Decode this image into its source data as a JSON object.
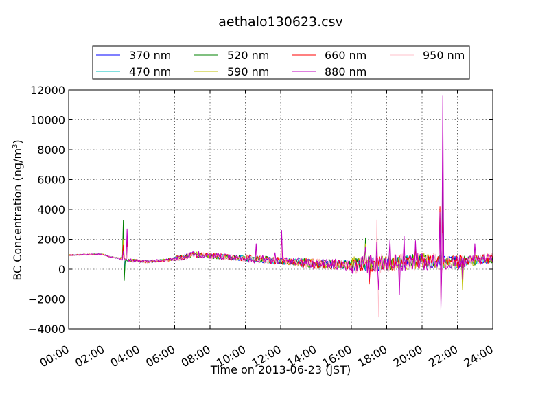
{
  "chart_data": {
    "type": "line",
    "title": "aethalo130623.csv",
    "xlabel": "Time on 2013-06-23 (JST)",
    "ylabel": "BC Concentration (ng/m",
    "ylabel_sup": "3",
    "ylabel_end": ")",
    "xlim": [
      0,
      24
    ],
    "ylim": [
      -4000,
      12000
    ],
    "x_ticks": [
      0,
      2,
      4,
      6,
      8,
      10,
      12,
      14,
      16,
      18,
      20,
      22,
      24
    ],
    "x_tick_labels": [
      "00:00",
      "02:00",
      "04:00",
      "06:00",
      "08:00",
      "10:00",
      "12:00",
      "14:00",
      "16:00",
      "18:00",
      "20:00",
      "22:00",
      "24:00"
    ],
    "y_ticks": [
      -4000,
      -2000,
      0,
      2000,
      4000,
      6000,
      8000,
      10000,
      12000
    ],
    "y_tick_labels": [
      "−4000",
      "−2000",
      "0",
      "2000",
      "4000",
      "6000",
      "8000",
      "10000",
      "12000"
    ],
    "grid": true,
    "legend_position": "top-center",
    "series": [
      {
        "name": "370 nm",
        "color": "#0000ff",
        "seed": 11,
        "noise": 1.0
      },
      {
        "name": "470 nm",
        "color": "#00bfbf",
        "seed": 23,
        "noise": 1.0
      },
      {
        "name": "520 nm",
        "color": "#008000",
        "seed": 37,
        "noise": 1.05
      },
      {
        "name": "590 nm",
        "color": "#bfbf00",
        "seed": 41,
        "noise": 1.1
      },
      {
        "name": "660 nm",
        "color": "#ff0000",
        "seed": 53,
        "noise": 1.1
      },
      {
        "name": "880 nm",
        "color": "#bf00bf",
        "seed": 67,
        "noise": 1.25
      },
      {
        "name": "950 nm",
        "color": "#ffc0cb",
        "seed": 79,
        "noise": 1.3
      }
    ],
    "features": [
      {
        "x": 0.0,
        "y": 950
      },
      {
        "x": 1.9,
        "y": 1000
      },
      {
        "x": 2.3,
        "y": 850
      },
      {
        "x": 3.0,
        "y": 700
      },
      {
        "x": 3.4,
        "y": 600
      },
      {
        "x": 4.5,
        "y": 500
      },
      {
        "x": 5.5,
        "y": 600
      },
      {
        "x": 6.5,
        "y": 800
      },
      {
        "x": 7.0,
        "y": 1000
      },
      {
        "x": 8.0,
        "y": 900
      },
      {
        "x": 9.0,
        "y": 800
      },
      {
        "x": 11.0,
        "y": 650
      },
      {
        "x": 12.5,
        "y": 500
      },
      {
        "x": 14.0,
        "y": 350
      },
      {
        "x": 16.0,
        "y": 300
      },
      {
        "x": 18.0,
        "y": 400
      },
      {
        "x": 20.0,
        "y": 550
      },
      {
        "x": 22.0,
        "y": 450
      },
      {
        "x": 24.0,
        "y": 750
      }
    ],
    "spikes": [
      {
        "x": 3.1,
        "values": {
          "520 nm": 3250,
          "370 nm": 2200,
          "470 nm": 2400,
          "590 nm": 2000,
          "660 nm": 1600,
          "880 nm": 1200,
          "950 nm": 900
        }
      },
      {
        "x": 3.15,
        "values": {
          "520 nm": -750,
          "470 nm": -300,
          "370 nm": -200
        }
      },
      {
        "x": 3.3,
        "values": {
          "880 nm": 2700,
          "660 nm": 2100,
          "590 nm": 1800,
          "950 nm": 1500
        }
      },
      {
        "x": 12.05,
        "values": {
          "880 nm": 2600,
          "660 nm": 1800,
          "950 nm": 1600
        }
      },
      {
        "x": 11.7,
        "values": {
          "880 nm": 1100,
          "950 nm": 800
        }
      },
      {
        "x": 10.6,
        "values": {
          "880 nm": 1700,
          "950 nm": 1200
        }
      },
      {
        "x": 16.8,
        "values": {
          "520 nm": 2100,
          "590 nm": 1700,
          "880 nm": 1500
        }
      },
      {
        "x": 17.0,
        "values": {
          "660 nm": -1000,
          "880 nm": -700
        }
      },
      {
        "x": 17.45,
        "values": {
          "950 nm": 3300,
          "880 nm": 1800
        }
      },
      {
        "x": 17.55,
        "values": {
          "950 nm": -3200,
          "880 nm": -1400
        }
      },
      {
        "x": 18.2,
        "values": {
          "880 nm": 2000,
          "950 nm": 1400
        }
      },
      {
        "x": 18.7,
        "values": {
          "880 nm": -1700,
          "950 nm": -900
        }
      },
      {
        "x": 19.0,
        "values": {
          "880 nm": 2200,
          "950 nm": 1500
        }
      },
      {
        "x": 19.6,
        "values": {
          "880 nm": 1900,
          "660 nm": 1400
        }
      },
      {
        "x": 21.0,
        "values": {
          "660 nm": 4200,
          "880 nm": 3800,
          "590 nm": 3400,
          "950 nm": 2800
        }
      },
      {
        "x": 21.2,
        "values": {
          "880 nm": 11600,
          "520 nm": 7700,
          "370 nm": 6500,
          "470 nm": 5600,
          "660 nm": 3300,
          "590 nm": 3000,
          "950 nm": 2400
        }
      },
      {
        "x": 21.05,
        "values": {
          "880 nm": -2700,
          "660 nm": -2100,
          "950 nm": -1500
        }
      },
      {
        "x": 22.3,
        "values": {
          "590 nm": -1400,
          "880 nm": -700
        }
      },
      {
        "x": 23.0,
        "values": {
          "880 nm": 1700,
          "950 nm": 1200
        }
      }
    ]
  }
}
